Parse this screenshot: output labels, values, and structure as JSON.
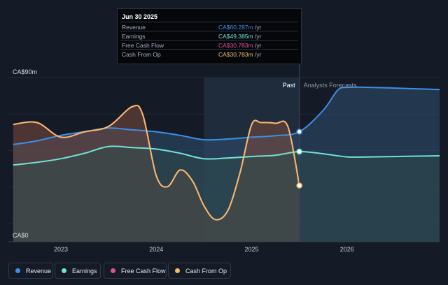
{
  "colors": {
    "background": "#151b26",
    "revenue": "#3d8fe6",
    "earnings": "#6fe3d6",
    "free_cash_flow": "#e2508f",
    "cash_from_op": "#f5b96a",
    "past_shade": "#1f2c3c"
  },
  "tooltip": {
    "date": "Jun 30 2025",
    "rows": [
      {
        "label": "Revenue",
        "value": "CA$60.287m",
        "unit": "/yr",
        "color": "#3d8fe6"
      },
      {
        "label": "Earnings",
        "value": "CA$49.385m",
        "unit": "/yr",
        "color": "#6fe3d6"
      },
      {
        "label": "Free Cash Flow",
        "value": "CA$30.783m",
        "unit": "/yr",
        "color": "#e2508f"
      },
      {
        "label": "Cash From Op",
        "value": "CA$30.783m",
        "unit": "/yr",
        "color": "#f5b96a"
      }
    ]
  },
  "legend": [
    {
      "label": "Revenue",
      "color": "#3d8fe6"
    },
    {
      "label": "Earnings",
      "color": "#6fe3d6"
    },
    {
      "label": "Free Cash Flow",
      "color": "#e2508f"
    },
    {
      "label": "Cash From Op",
      "color": "#f5b96a"
    }
  ],
  "chart_data": {
    "type": "line",
    "y_top_label": "CA$90m",
    "y_bottom_label": "CA$0",
    "ylim": [
      0,
      90
    ],
    "xlim": [
      2022.45,
      2026.97
    ],
    "x_ticks": [
      2023,
      2024,
      2025,
      2026
    ],
    "x_tick_labels": [
      "2023",
      "2024",
      "2025",
      "2026"
    ],
    "past_label": "Past",
    "forecast_label": "Analysts Forecasts",
    "divider_x": 2025.5,
    "highlight_start_x": 2024.5,
    "grid": true,
    "series": [
      {
        "name": "Revenue",
        "key": "revenue",
        "x": [
          2022.5,
          2022.75,
          2023.0,
          2023.25,
          2023.5,
          2023.75,
          2024.0,
          2024.25,
          2024.5,
          2024.75,
          2025.0,
          2025.25,
          2025.5,
          2025.75,
          2025.9,
          2026.0,
          2026.25,
          2026.5,
          2026.75,
          2026.97
        ],
        "y": [
          53.3,
          55.3,
          58.3,
          60.3,
          62.3,
          61.3,
          60.3,
          58.3,
          55.9,
          56.3,
          57.3,
          58.1,
          60.3,
          72,
          83,
          84.6,
          84.6,
          84.2,
          83.8,
          83.4
        ]
      },
      {
        "name": "Earnings",
        "key": "earnings",
        "x": [
          2022.5,
          2022.75,
          2023.0,
          2023.25,
          2023.5,
          2023.75,
          2024.0,
          2024.25,
          2024.5,
          2024.75,
          2025.0,
          2025.25,
          2025.5,
          2025.75,
          2026.0,
          2026.25,
          2026.5,
          2026.75,
          2026.97
        ],
        "y": [
          42,
          43.5,
          45.5,
          48.5,
          52.2,
          51.6,
          50.8,
          48.5,
          45.5,
          45.9,
          46.7,
          47.4,
          49.4,
          48.2,
          46.5,
          46.5,
          46.7,
          46.9,
          47.1
        ]
      },
      {
        "name": "Free Cash Flow",
        "key": "free_cash_flow",
        "x": [
          2022.5,
          2022.75,
          2023.0,
          2023.25,
          2023.5,
          2023.75,
          2023.86,
          2024.0,
          2024.12,
          2024.25,
          2024.38,
          2024.5,
          2024.62,
          2024.75,
          2024.88,
          2025.0,
          2025.1,
          2025.25,
          2025.38,
          2025.5
        ],
        "y": [
          64.3,
          65.3,
          57.3,
          60.3,
          63.2,
          74.1,
          69.3,
          36.2,
          30.2,
          39.3,
          33.3,
          19.7,
          12.1,
          17.1,
          38.3,
          64.2,
          65.3,
          64.9,
          63.1,
          30.8
        ]
      },
      {
        "name": "Cash From Op",
        "key": "cash_from_op",
        "x": [
          2022.5,
          2022.75,
          2023.0,
          2023.25,
          2023.5,
          2023.75,
          2023.86,
          2024.0,
          2024.12,
          2024.25,
          2024.38,
          2024.5,
          2024.62,
          2024.75,
          2024.88,
          2025.0,
          2025.1,
          2025.25,
          2025.38,
          2025.5
        ],
        "y": [
          64.3,
          65.3,
          57.3,
          60.3,
          63.2,
          74.1,
          69.3,
          36.2,
          30.2,
          39.3,
          33.3,
          19.7,
          12.1,
          17.1,
          38.3,
          64.2,
          65.3,
          64.9,
          63.1,
          30.8
        ]
      }
    ]
  }
}
